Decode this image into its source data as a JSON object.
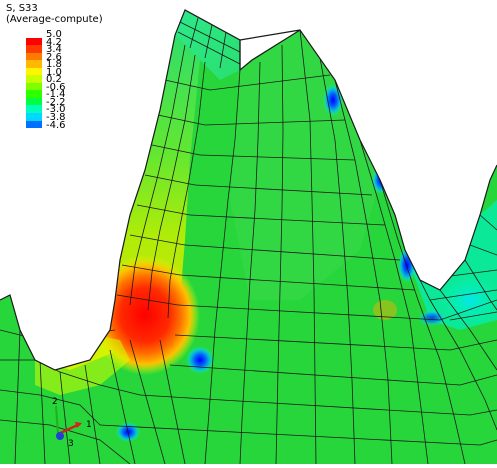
{
  "legend": {
    "title": "S, S33",
    "subtitle": "(Average-compute)",
    "entries": [
      {
        "label": "5.0",
        "color": "#ff0000"
      },
      {
        "label": "4.2",
        "color": "#ff3a00"
      },
      {
        "label": "3.4",
        "color": "#ff7b00"
      },
      {
        "label": "2.6",
        "color": "#ffb900"
      },
      {
        "label": "1.8",
        "color": "#fff500"
      },
      {
        "label": "1.0",
        "color": "#c8ff00"
      },
      {
        "label": "0.2",
        "color": "#7dff00"
      },
      {
        "label": "-0.6",
        "color": "#2fff00"
      },
      {
        "label": "-1.4",
        "color": "#00ff40"
      },
      {
        "label": "-2.2",
        "color": "#00ffb8"
      },
      {
        "label": "-3.0",
        "color": "#00d8ff"
      },
      {
        "label": "-3.8",
        "color": "#0070ff"
      },
      {
        "label": "-4.6",
        "color": "#0000ff"
      }
    ]
  },
  "triad": {
    "x_label": "1",
    "y_label": "2",
    "z_label": "3",
    "x_color": "#d42020",
    "y_color": "#20b020",
    "z_color": "#2040d0"
  },
  "colors": {
    "mesh_line": "#1a1a1a",
    "background": "#ffffff"
  }
}
